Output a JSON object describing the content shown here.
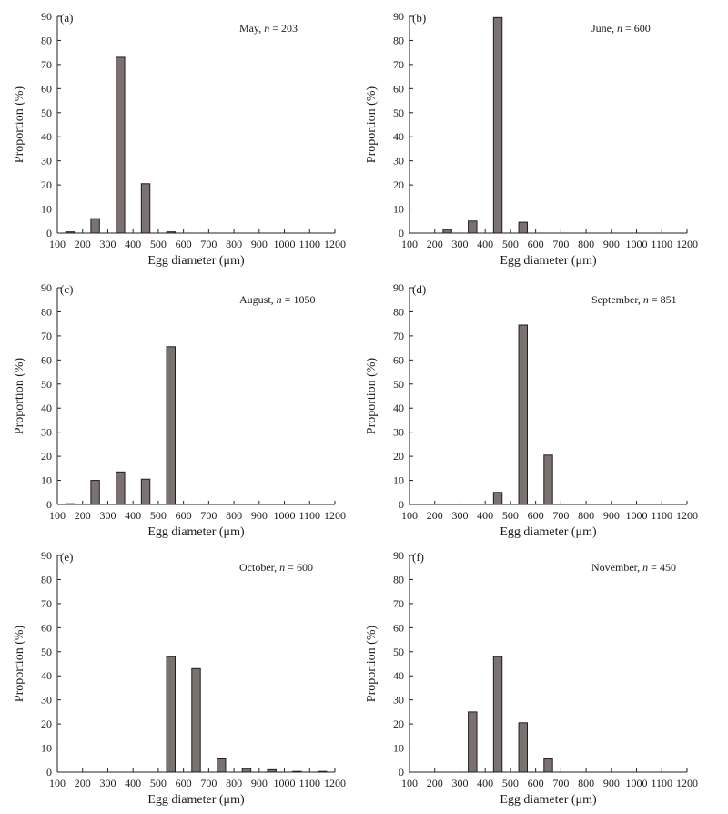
{
  "figure": {
    "y_unit": "Proportion (%)",
    "x_unit": "Egg diameter (μm)"
  },
  "chart_data": [
    {
      "type": "bar",
      "panel": "(a)",
      "month": "May",
      "n_label": "n",
      "n_eq": " = ",
      "n_value": "203",
      "xlabel": "Egg diameter (μm)",
      "ylabel": "Proportion (%)",
      "xlim": [
        100,
        1200
      ],
      "ylim": [
        0,
        90
      ],
      "xticks": [
        100,
        200,
        300,
        400,
        500,
        600,
        700,
        800,
        900,
        1000,
        1100,
        1200
      ],
      "yticks": [
        0,
        10,
        20,
        30,
        40,
        50,
        60,
        70,
        80,
        90
      ],
      "bin_centers": [
        150,
        250,
        350,
        450,
        550,
        650,
        750,
        850,
        950,
        1050,
        1150
      ],
      "values": [
        0.5,
        6,
        73,
        20.5,
        0.5,
        0,
        0,
        0,
        0,
        0,
        0
      ]
    },
    {
      "type": "bar",
      "panel": "(b)",
      "month": "June",
      "n_label": "n",
      "n_eq": " = ",
      "n_value": "600",
      "xlabel": "Egg diameter (μm)",
      "ylabel": "Proportion (%)",
      "xlim": [
        100,
        1200
      ],
      "ylim": [
        0,
        90
      ],
      "xticks": [
        100,
        200,
        300,
        400,
        500,
        600,
        700,
        800,
        900,
        1000,
        1100,
        1200
      ],
      "yticks": [
        0,
        10,
        20,
        30,
        40,
        50,
        60,
        70,
        80,
        90
      ],
      "bin_centers": [
        150,
        250,
        350,
        450,
        550,
        650,
        750,
        850,
        950,
        1050,
        1150
      ],
      "values": [
        0,
        1.5,
        5,
        89.5,
        4.5,
        0,
        0,
        0,
        0,
        0,
        0
      ]
    },
    {
      "type": "bar",
      "panel": "(c)",
      "month": "August",
      "n_label": "n",
      "n_eq": " = ",
      "n_value": "1050",
      "xlabel": "Egg diameter (μm)",
      "ylabel": "Proportion (%)",
      "xlim": [
        100,
        1200
      ],
      "ylim": [
        0,
        90
      ],
      "xticks": [
        100,
        200,
        300,
        400,
        500,
        600,
        700,
        800,
        900,
        1000,
        1100,
        1200
      ],
      "yticks": [
        0,
        10,
        20,
        30,
        40,
        50,
        60,
        70,
        80,
        90
      ],
      "bin_centers": [
        150,
        250,
        350,
        450,
        550,
        650,
        750,
        850,
        950,
        1050,
        1150
      ],
      "values": [
        0.3,
        10,
        13.5,
        10.5,
        65.5,
        0,
        0,
        0,
        0,
        0,
        0
      ]
    },
    {
      "type": "bar",
      "panel": "(d)",
      "month": "September",
      "n_label": "n",
      "n_eq": " = ",
      "n_value": "851",
      "xlabel": "Egg diameter (μm)",
      "ylabel": "Proportion (%)",
      "xlim": [
        100,
        1200
      ],
      "ylim": [
        0,
        90
      ],
      "xticks": [
        100,
        200,
        300,
        400,
        500,
        600,
        700,
        800,
        900,
        1000,
        1100,
        1200
      ],
      "yticks": [
        0,
        10,
        20,
        30,
        40,
        50,
        60,
        70,
        80,
        90
      ],
      "bin_centers": [
        150,
        250,
        350,
        450,
        550,
        650,
        750,
        850,
        950,
        1050,
        1150
      ],
      "values": [
        0,
        0,
        0,
        5,
        74.5,
        20.5,
        0,
        0,
        0,
        0,
        0
      ]
    },
    {
      "type": "bar",
      "panel": "(e)",
      "month": "October",
      "n_label": "n",
      "n_eq": " = ",
      "n_value": "600",
      "xlabel": "Egg diameter (μm)",
      "ylabel": "Proportion (%)",
      "xlim": [
        100,
        1200
      ],
      "ylim": [
        0,
        90
      ],
      "xticks": [
        100,
        200,
        300,
        400,
        500,
        600,
        700,
        800,
        900,
        1000,
        1100,
        1200
      ],
      "yticks": [
        0,
        10,
        20,
        30,
        40,
        50,
        60,
        70,
        80,
        90
      ],
      "bin_centers": [
        150,
        250,
        350,
        450,
        550,
        650,
        750,
        850,
        950,
        1050,
        1150
      ],
      "values": [
        0,
        0,
        0,
        0,
        48,
        43,
        5.5,
        1.5,
        1,
        0.3,
        0.3
      ]
    },
    {
      "type": "bar",
      "panel": "(f)",
      "month": "November",
      "n_label": "n",
      "n_eq": " = ",
      "n_value": "450",
      "xlabel": "Egg diameter (μm)",
      "ylabel": "Proportion (%)",
      "xlim": [
        100,
        1200
      ],
      "ylim": [
        0,
        90
      ],
      "xticks": [
        100,
        200,
        300,
        400,
        500,
        600,
        700,
        800,
        900,
        1000,
        1100,
        1200
      ],
      "yticks": [
        0,
        10,
        20,
        30,
        40,
        50,
        60,
        70,
        80,
        90
      ],
      "bin_centers": [
        150,
        250,
        350,
        450,
        550,
        650,
        750,
        850,
        950,
        1050,
        1150
      ],
      "values": [
        0,
        0,
        25,
        48,
        20.5,
        5.5,
        0,
        0,
        0,
        0,
        0
      ]
    }
  ]
}
